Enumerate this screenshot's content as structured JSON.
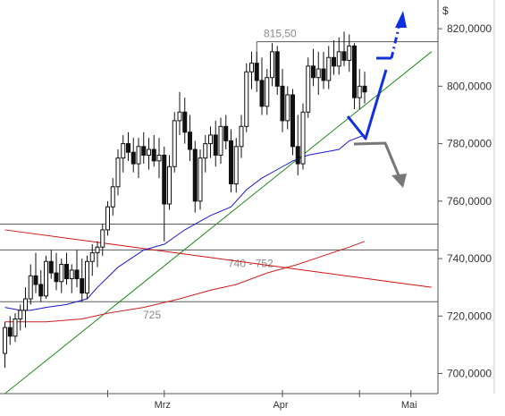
{
  "chart_data": {
    "type": "candlestick",
    "currency_label": "$",
    "ylim": [
      693,
      830
    ],
    "y_ticks": [
      {
        "value": 700,
        "label": "700,0000"
      },
      {
        "value": 720,
        "label": "720,0000"
      },
      {
        "value": 740,
        "label": "740,0000"
      },
      {
        "value": 760,
        "label": "760,0000"
      },
      {
        "value": 780,
        "label": "780,0000"
      },
      {
        "value": 800,
        "label": "800,0000"
      },
      {
        "value": 820,
        "label": "820,0000"
      }
    ],
    "x_ticks": [
      {
        "index": 20,
        "label": ""
      },
      {
        "index": 31,
        "label": "Mrz"
      },
      {
        "index": 54,
        "label": "Apr"
      },
      {
        "index": 69,
        "label": ""
      },
      {
        "index": 79,
        "label": "Mai"
      }
    ],
    "candles": [
      [
        707,
        718,
        702,
        716
      ],
      [
        716,
        720,
        710,
        713
      ],
      [
        713,
        721,
        711,
        719
      ],
      [
        719,
        724,
        715,
        722
      ],
      [
        722,
        730,
        716,
        726
      ],
      [
        726,
        738,
        724,
        734
      ],
      [
        734,
        742,
        728,
        731
      ],
      [
        731,
        736,
        725,
        727
      ],
      [
        727,
        741,
        726,
        739
      ],
      [
        739,
        743,
        733,
        735
      ],
      [
        735,
        742,
        729,
        732
      ],
      [
        732,
        740,
        728,
        738
      ],
      [
        738,
        742,
        731,
        733
      ],
      [
        733,
        738,
        728,
        736
      ],
      [
        736,
        743,
        730,
        733
      ],
      [
        733,
        740,
        725,
        728
      ],
      [
        728,
        741,
        726,
        739
      ],
      [
        739,
        745,
        734,
        742
      ],
      [
        742,
        746,
        737,
        744
      ],
      [
        744,
        752,
        741,
        750
      ],
      [
        750,
        760,
        748,
        758
      ],
      [
        758,
        768,
        755,
        765
      ],
      [
        765,
        778,
        762,
        775
      ],
      [
        775,
        783,
        770,
        780
      ],
      [
        780,
        784,
        774,
        777
      ],
      [
        777,
        782,
        770,
        773
      ],
      [
        773,
        782,
        768,
        779
      ],
      [
        779,
        784,
        773,
        776
      ],
      [
        776,
        782,
        771,
        778
      ],
      [
        778,
        783,
        772,
        774
      ],
      [
        774,
        782,
        768,
        776
      ],
      [
        776,
        779,
        746,
        759
      ],
      [
        759,
        776,
        757,
        772
      ],
      [
        772,
        791,
        770,
        788
      ],
      [
        788,
        798,
        783,
        791
      ],
      [
        791,
        796,
        780,
        784
      ],
      [
        784,
        790,
        774,
        778
      ],
      [
        778,
        781,
        756,
        760
      ],
      [
        760,
        778,
        757,
        775
      ],
      [
        775,
        783,
        770,
        780
      ],
      [
        780,
        786,
        775,
        783
      ],
      [
        783,
        788,
        772,
        776
      ],
      [
        776,
        789,
        773,
        786
      ],
      [
        786,
        790,
        778,
        781
      ],
      [
        781,
        785,
        763,
        766
      ],
      [
        766,
        782,
        763,
        779
      ],
      [
        779,
        790,
        775,
        786
      ],
      [
        786,
        808,
        784,
        805
      ],
      [
        805,
        812,
        799,
        808
      ],
      [
        808,
        812,
        798,
        802
      ],
      [
        802,
        810,
        790,
        793
      ],
      [
        793,
        806,
        790,
        803
      ],
      [
        803,
        815,
        800,
        812
      ],
      [
        812,
        814,
        797,
        800
      ],
      [
        800,
        806,
        784,
        788
      ],
      [
        788,
        800,
        785,
        797
      ],
      [
        797,
        799,
        776,
        779
      ],
      [
        779,
        790,
        769,
        773
      ],
      [
        773,
        794,
        771,
        791
      ],
      [
        791,
        810,
        789,
        807
      ],
      [
        807,
        813,
        800,
        803
      ],
      [
        803,
        812,
        797,
        806
      ],
      [
        806,
        812,
        799,
        802
      ],
      [
        802,
        814,
        799,
        810
      ],
      [
        810,
        816,
        804,
        807
      ],
      [
        807,
        817,
        804,
        812
      ],
      [
        812,
        819,
        807,
        809
      ],
      [
        809,
        818,
        805,
        814
      ],
      [
        814,
        815,
        792,
        796
      ],
      [
        796,
        806,
        792,
        800
      ],
      [
        800,
        805,
        794,
        798
      ]
    ],
    "series": [
      {
        "kind": "moving-average",
        "color": "#1a1acc",
        "points": [
          [
            0,
            723
          ],
          [
            3,
            722
          ],
          [
            5,
            722
          ],
          [
            8,
            723
          ],
          [
            12,
            724
          ],
          [
            16,
            726
          ],
          [
            18,
            730
          ],
          [
            22,
            737
          ],
          [
            27,
            743
          ],
          [
            31,
            745
          ],
          [
            35,
            750
          ],
          [
            40,
            755
          ],
          [
            44,
            758
          ],
          [
            47,
            764
          ],
          [
            50,
            768
          ],
          [
            53,
            771
          ],
          [
            56,
            774
          ],
          [
            59,
            776
          ],
          [
            62,
            777
          ],
          [
            65,
            778
          ],
          [
            67,
            781
          ],
          [
            70,
            783
          ]
        ]
      },
      {
        "kind": "moving-average",
        "color": "#cc2020",
        "points": [
          [
            0,
            718
          ],
          [
            8,
            718
          ],
          [
            15,
            719
          ],
          [
            20,
            721
          ],
          [
            27,
            723
          ],
          [
            34,
            726
          ],
          [
            40,
            729
          ],
          [
            45,
            731
          ],
          [
            51,
            735
          ],
          [
            57,
            738
          ],
          [
            62,
            741
          ],
          [
            67,
            744
          ],
          [
            70,
            746
          ]
        ]
      }
    ],
    "trendlines": [
      {
        "color": "#1f8a1f",
        "from": [
          0,
          693
        ],
        "to": [
          83,
          812
        ]
      },
      {
        "color": "#d01010",
        "from": [
          0,
          750
        ],
        "to": [
          83,
          730
        ]
      }
    ],
    "levels": [
      {
        "value": 815.5,
        "label": "815,50",
        "from_index": 49
      },
      {
        "value": 752,
        "label": ""
      },
      {
        "value": 743,
        "label": "740 - 752"
      },
      {
        "value": 725,
        "label": "725"
      }
    ],
    "arrows": [
      {
        "kind": "blue-scenario",
        "color": "#1030e0"
      },
      {
        "kind": "grey-scenario",
        "color": "#777777"
      }
    ]
  }
}
